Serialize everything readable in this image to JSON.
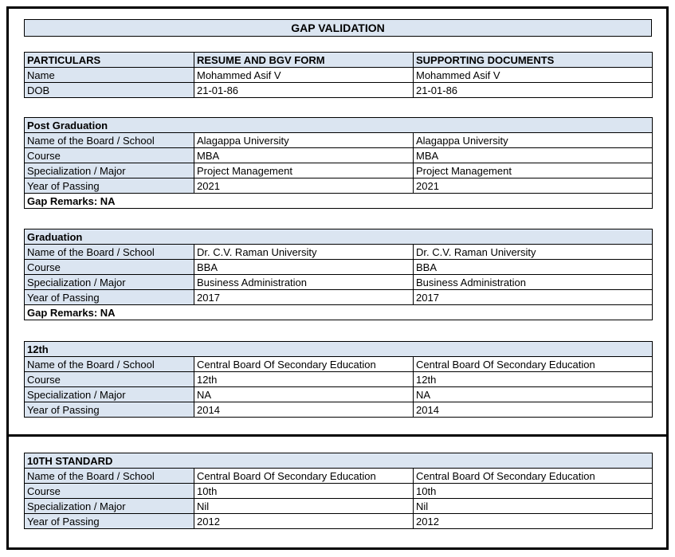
{
  "page": {
    "title": "GAP VALIDATION"
  },
  "colors": {
    "shaded_cell_bg": "#dbe5f1",
    "border": "#000000",
    "page_bg": "#ffffff"
  },
  "summary_table": {
    "columns": [
      "PARTICULARS",
      "RESUME AND BGV FORM",
      "SUPPORTING DOCUMENTS"
    ],
    "rows": [
      {
        "label": "Name",
        "resume": "Mohammed Asif V",
        "supporting": "Mohammed Asif V"
      },
      {
        "label": "DOB",
        "resume": "21-01-86",
        "supporting": "21-01-86"
      }
    ]
  },
  "sections": [
    {
      "title": "Post Graduation",
      "rows": [
        {
          "label": "Name of the Board / School",
          "resume": "Alagappa University",
          "supporting": "Alagappa University"
        },
        {
          "label": "Course",
          "resume": "MBA",
          "supporting": "MBA"
        },
        {
          "label": "Specialization / Major",
          "resume": "Project Management",
          "supporting": "Project Management"
        },
        {
          "label": "Year of Passing",
          "resume": "2021",
          "supporting": "2021"
        }
      ],
      "remarks": "Gap Remarks: NA"
    },
    {
      "title": "Graduation",
      "rows": [
        {
          "label": "Name of the Board / School",
          "resume": "Dr. C.V. Raman University",
          "supporting": "Dr. C.V. Raman University"
        },
        {
          "label": "Course",
          "resume": "BBA",
          "supporting": "BBA"
        },
        {
          "label": "Specialization / Major",
          "resume": "Business Administration",
          "supporting": "Business Administration"
        },
        {
          "label": "Year of Passing",
          "resume": "2017",
          "supporting": "2017"
        }
      ],
      "remarks": "Gap Remarks: NA"
    },
    {
      "title": "12th",
      "rows": [
        {
          "label": "Name of the Board / School",
          "resume": "Central Board Of Secondary Education",
          "supporting": "Central Board Of Secondary Education"
        },
        {
          "label": "Course",
          "resume": "12th",
          "supporting": "12th"
        },
        {
          "label": "Specialization / Major",
          "resume": "NA",
          "supporting": "NA"
        },
        {
          "label": "Year of Passing",
          "resume": "2014",
          "supporting": "2014"
        }
      ]
    },
    {
      "title": "10TH STANDARD",
      "rows": [
        {
          "label": "Name of the Board / School",
          "resume": "Central Board Of Secondary Education",
          "supporting": "Central Board Of Secondary Education"
        },
        {
          "label": "Course",
          "resume": "10th",
          "supporting": "10th"
        },
        {
          "label": "Specialization / Major",
          "resume": "Nil",
          "supporting": "Nil"
        },
        {
          "label": "Year of Passing",
          "resume": "2012",
          "supporting": "2012"
        }
      ]
    }
  ]
}
